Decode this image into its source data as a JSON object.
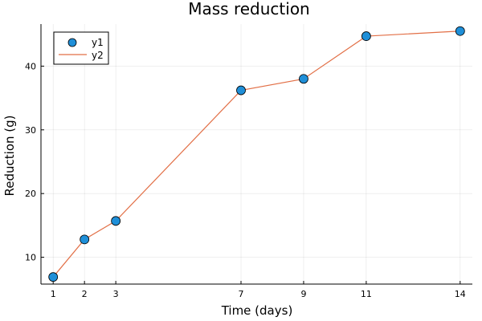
{
  "chart_data": {
    "type": "line",
    "title": "Mass reduction",
    "xlabel": "Time (days)",
    "ylabel": "Reduction (g)",
    "x": [
      1,
      2,
      3,
      7,
      9,
      11,
      14
    ],
    "series": [
      {
        "name": "y1",
        "kind": "scatter",
        "color": "#1f8fd8",
        "values": [
          6.9,
          12.8,
          15.7,
          36.2,
          38.0,
          44.7,
          45.5
        ]
      },
      {
        "name": "y2",
        "kind": "line",
        "color": "#e26f46",
        "values": [
          6.9,
          12.8,
          15.7,
          36.2,
          38.0,
          44.7,
          45.5
        ]
      }
    ],
    "xticks": [
      1,
      2,
      3,
      7,
      9,
      11,
      14
    ],
    "yticks": [
      10,
      20,
      30,
      40
    ],
    "xlim": [
      0.61,
      14.39
    ],
    "ylim": [
      5.79,
      46.6
    ],
    "grid": true,
    "legend_position": "top-left"
  }
}
